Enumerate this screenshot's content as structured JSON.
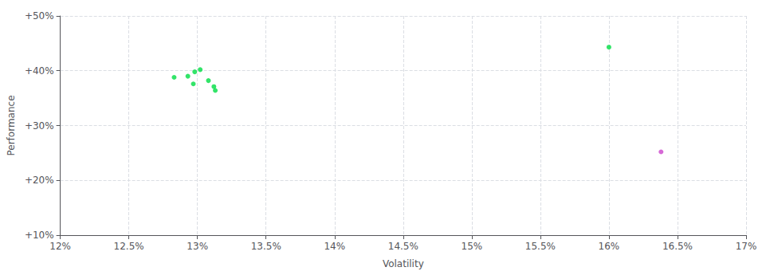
{
  "chart_data": {
    "type": "scatter",
    "xlabel": "Volatility",
    "ylabel": "Performance",
    "xlim": [
      0.12,
      0.17
    ],
    "ylim": [
      0.1,
      0.5
    ],
    "xticks": [
      {
        "value": 0.12,
        "label": "12%"
      },
      {
        "value": 0.125,
        "label": "12.5%"
      },
      {
        "value": 0.13,
        "label": "13%"
      },
      {
        "value": 0.135,
        "label": "13.5%"
      },
      {
        "value": 0.14,
        "label": "14%"
      },
      {
        "value": 0.145,
        "label": "14.5%"
      },
      {
        "value": 0.15,
        "label": "15%"
      },
      {
        "value": 0.155,
        "label": "15.5%"
      },
      {
        "value": 0.16,
        "label": "16%"
      },
      {
        "value": 0.165,
        "label": "16.5%"
      },
      {
        "value": 0.17,
        "label": "17%"
      }
    ],
    "yticks": [
      {
        "value": 0.1,
        "label": "+10%"
      },
      {
        "value": 0.2,
        "label": "+20%"
      },
      {
        "value": 0.3,
        "label": "+30%"
      },
      {
        "value": 0.4,
        "label": "+40%"
      },
      {
        "value": 0.5,
        "label": "+50%"
      }
    ],
    "grid": true,
    "series": [
      {
        "color": "#00dd44",
        "values": [
          [
            0.1283,
            0.388
          ],
          [
            0.1293,
            0.39
          ],
          [
            0.1298,
            0.398
          ],
          [
            0.1302,
            0.402
          ],
          [
            0.1297,
            0.376
          ],
          [
            0.1308,
            0.382
          ],
          [
            0.1312,
            0.371
          ],
          [
            0.1313,
            0.364
          ],
          [
            0.16,
            0.443
          ]
        ]
      },
      {
        "color": "#cc44cc",
        "values": [
          [
            0.1638,
            0.252
          ]
        ]
      }
    ]
  }
}
